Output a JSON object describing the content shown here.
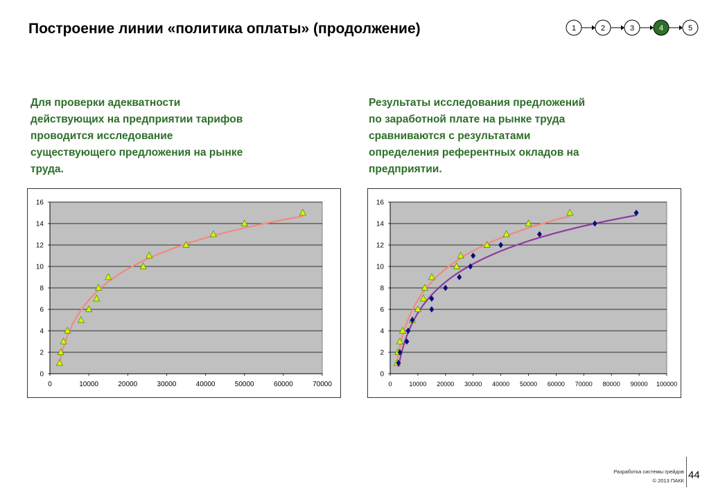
{
  "header": {
    "title": "Построение линии «политика оплаты» (продолжение)"
  },
  "stepper": {
    "steps": [
      "1",
      "2",
      "3",
      "4",
      "5"
    ],
    "active_index": 3,
    "active_color": "#2e6f2a"
  },
  "left_text": {
    "lines": [
      "Для проверки адекватности",
      "действующих на предприятии тарифов",
      "проводится исследование",
      "существующего предложения на рынке",
      "труда."
    ]
  },
  "right_text": {
    "lines": [
      "Результаты исследования предложений",
      "по заработной плате на рынке труда",
      "сравниваются с результатами",
      "определения референтных окладов на",
      "предприятии."
    ]
  },
  "colors": {
    "text_accent": "#2e6f2a",
    "plot_background": "#c0c0c0",
    "market_trend": "#f08a80",
    "market_points": "#ccff00",
    "reference_trend": "#8e3aa0",
    "reference_points": "#0b0b80"
  },
  "chart_data": [
    {
      "type": "scatter",
      "x_ticks": [
        "0",
        "10000",
        "20000",
        "30000",
        "40000",
        "50000",
        "60000",
        "70000"
      ],
      "y_ticks": [
        "0",
        "2",
        "4",
        "6",
        "8",
        "10",
        "12",
        "14",
        "16"
      ],
      "xlim": [
        0,
        70000
      ],
      "ylim": [
        0,
        16
      ],
      "grid": true,
      "legend": "none",
      "series": [
        {
          "marker": "triangle",
          "color": "#ccff00",
          "trendline": "logarithmic",
          "trend_color": "#f08a80",
          "points": [
            [
              2500,
              1
            ],
            [
              2800,
              2
            ],
            [
              3500,
              3
            ],
            [
              4500,
              4
            ],
            [
              8000,
              5
            ],
            [
              10000,
              6
            ],
            [
              12000,
              7
            ],
            [
              12500,
              8
            ],
            [
              15000,
              9
            ],
            [
              24000,
              10
            ],
            [
              25500,
              11
            ],
            [
              35000,
              12
            ],
            [
              42000,
              13
            ],
            [
              50000,
              14
            ],
            [
              65000,
              15
            ]
          ]
        }
      ]
    },
    {
      "type": "scatter",
      "x_ticks": [
        "0",
        "10000",
        "20000",
        "30000",
        "40000",
        "50000",
        "60000",
        "70000",
        "80000",
        "90000",
        "100000"
      ],
      "y_ticks": [
        "0",
        "2",
        "4",
        "6",
        "8",
        "10",
        "12",
        "14",
        "16"
      ],
      "xlim": [
        0,
        100000
      ],
      "ylim": [
        0,
        16
      ],
      "grid": true,
      "legend": "none",
      "series": [
        {
          "marker": "triangle",
          "color": "#ccff00",
          "trendline": "logarithmic",
          "trend_color": "#f08a80",
          "points": [
            [
              2500,
              1
            ],
            [
              2800,
              2
            ],
            [
              3500,
              3
            ],
            [
              4500,
              4
            ],
            [
              8000,
              5
            ],
            [
              10000,
              6
            ],
            [
              12000,
              7
            ],
            [
              12500,
              8
            ],
            [
              15000,
              9
            ],
            [
              24000,
              10
            ],
            [
              25500,
              11
            ],
            [
              35000,
              12
            ],
            [
              42000,
              13
            ],
            [
              50000,
              14
            ],
            [
              65000,
              15
            ]
          ]
        },
        {
          "marker": "diamond",
          "color": "#0b0b80",
          "trendline": "logarithmic",
          "trend_color": "#8e3aa0",
          "points": [
            [
              3000,
              1
            ],
            [
              3500,
              2
            ],
            [
              6000,
              3
            ],
            [
              6500,
              4
            ],
            [
              8000,
              5
            ],
            [
              15000,
              6
            ],
            [
              15000,
              7
            ],
            [
              20000,
              8
            ],
            [
              25000,
              9
            ],
            [
              29000,
              10
            ],
            [
              30000,
              11
            ],
            [
              40000,
              12
            ],
            [
              54000,
              13
            ],
            [
              74000,
              14
            ],
            [
              89000,
              15
            ]
          ]
        }
      ]
    }
  ],
  "footer": {
    "project": "Разработка системы грейдов",
    "copyright": "© 2013 ПАКК",
    "page_number": "44"
  }
}
